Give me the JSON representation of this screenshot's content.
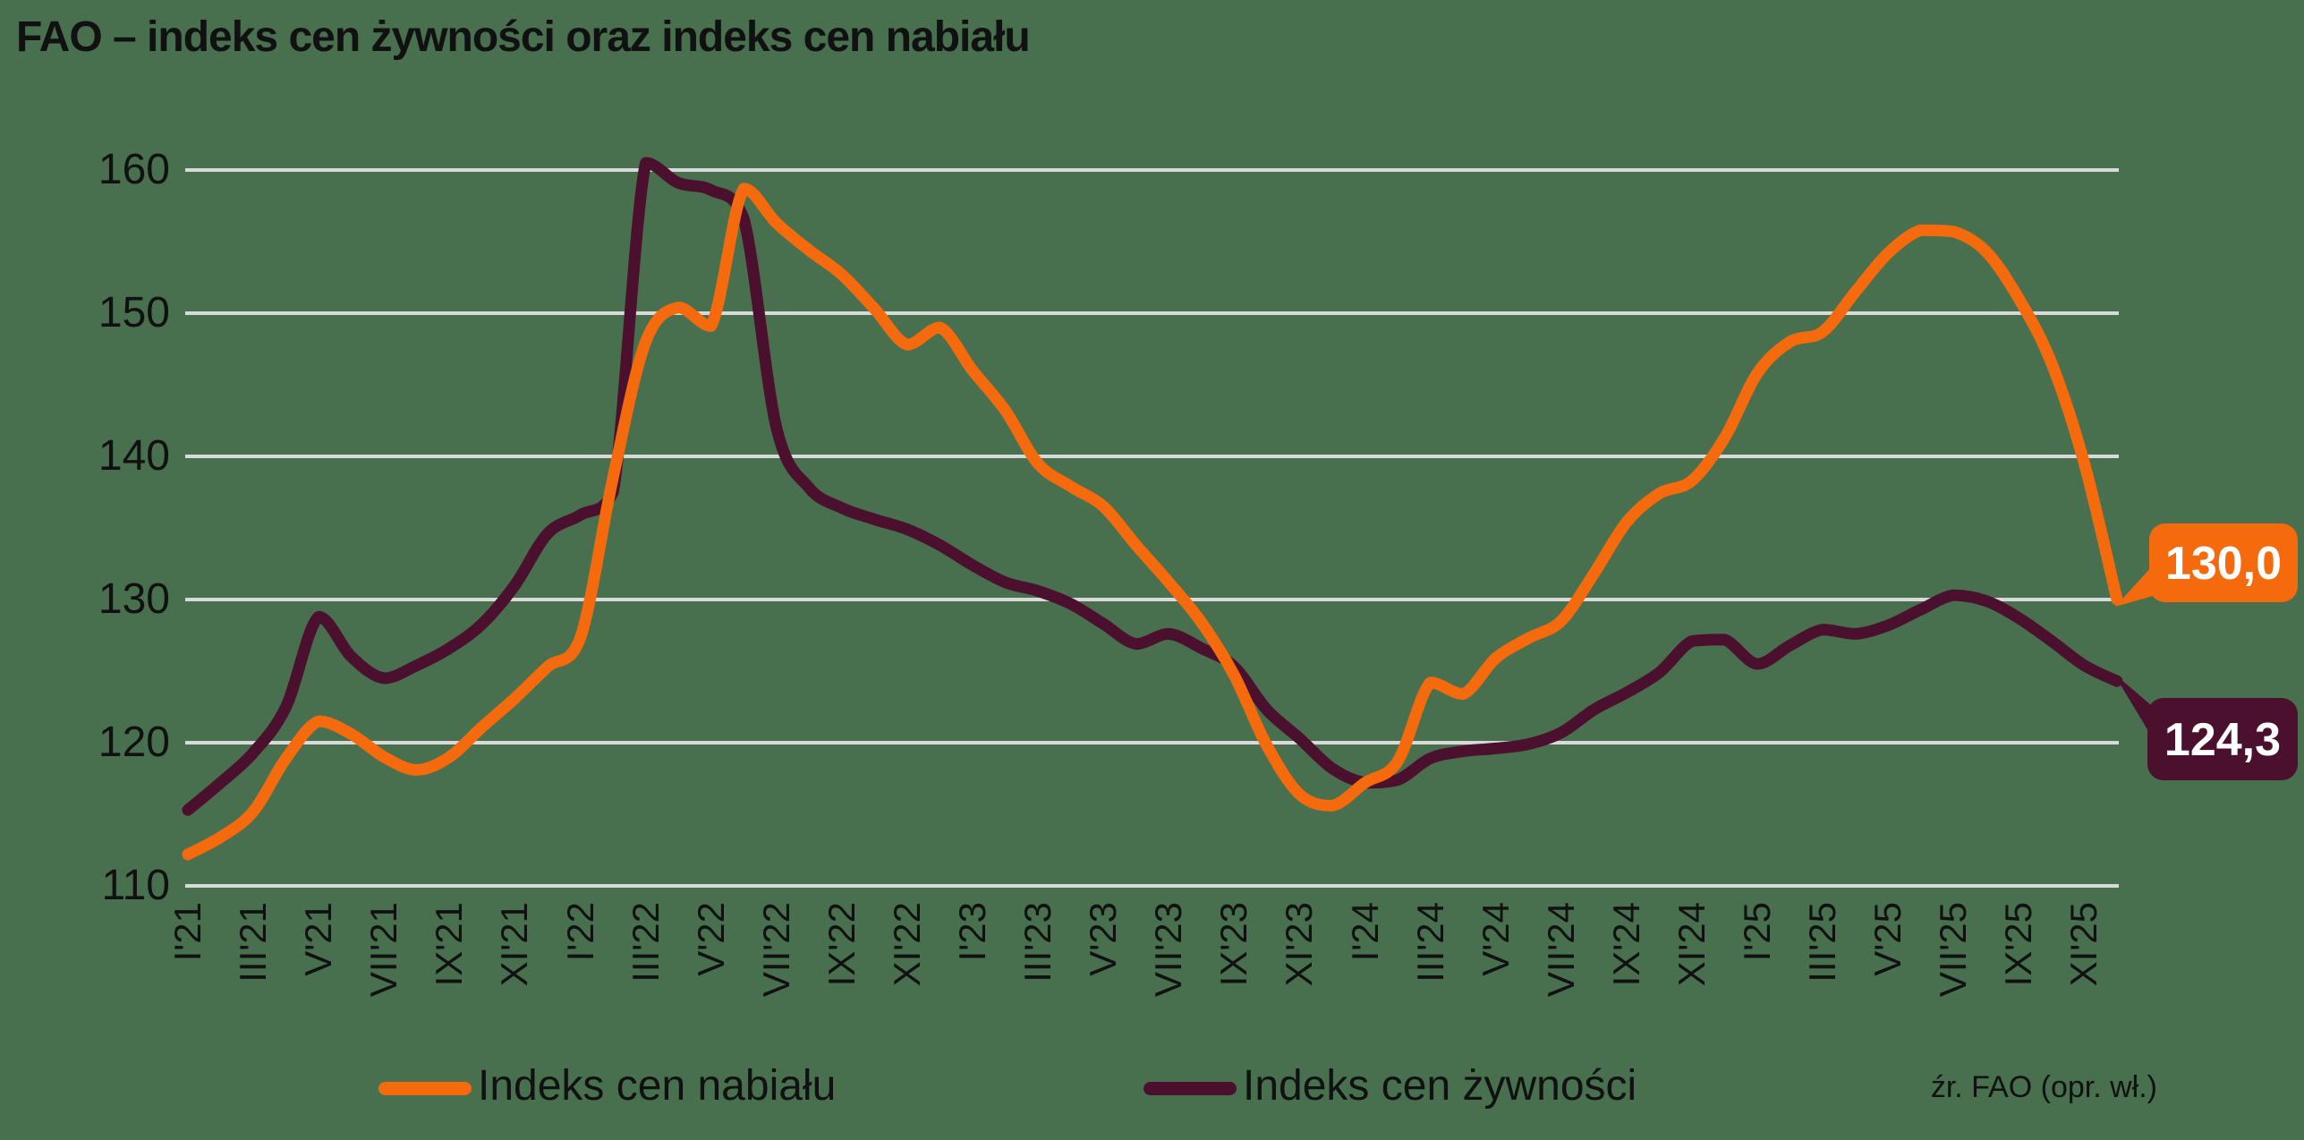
{
  "title": "FAO – indeks cen żywności oraz indeks cen nabiału",
  "source_note": "źr. FAO (opr. wł.)",
  "colors": {
    "background": "#48704E",
    "gridline": "#D9D9D9",
    "dairy": "#F56A0D",
    "food": "#4A102E",
    "text": "#111111",
    "callout_text": "#FFFFFF"
  },
  "legend": [
    {
      "label": "Indeks cen nabiału",
      "color_key": "dairy"
    },
    {
      "label": "Indeks cen żywności",
      "color_key": "food"
    }
  ],
  "end_labels": {
    "dairy": "130,0",
    "food": "124,3"
  },
  "chart_data": {
    "type": "line",
    "title": "FAO – indeks cen żywności oraz indeks cen nabiału",
    "x_start": "I'21",
    "x_end": "XII'25",
    "frequency": "monthly",
    "x_tick_labels": [
      "I'21",
      "III'21",
      "V'21",
      "VII'21",
      "IX'21",
      "XI'21",
      "I'22",
      "III'22",
      "V'22",
      "VII'22",
      "IX'22",
      "XI'22",
      "I'23",
      "III'23",
      "V'23",
      "VII'23",
      "IX'23",
      "XI'23",
      "I'24",
      "III'24",
      "V'24",
      "VII'24",
      "IX'24",
      "XI'24",
      "I'25",
      "III'25",
      "V'25",
      "VII'25",
      "IX'25",
      "XI'25"
    ],
    "y_ticks": [
      110,
      120,
      130,
      140,
      150,
      160
    ],
    "ylim": [
      110,
      160
    ],
    "grid": "horizontal",
    "legend_position": "bottom",
    "series": [
      {
        "name": "Indeks cen nabiału",
        "color_key": "dairy",
        "end_value_label": "130,0",
        "values": [
          112.2,
          113.4,
          115.2,
          118.9,
          121.5,
          120.6,
          119.0,
          118.1,
          119.0,
          121.1,
          123.1,
          125.3,
          127.3,
          138.5,
          148.0,
          150.4,
          149.1,
          158.7,
          156.3,
          154.4,
          152.7,
          150.3,
          147.8,
          149.0,
          146.0,
          143.2,
          139.5,
          137.9,
          136.5,
          133.8,
          131.2,
          128.4,
          124.7,
          119.8,
          116.4,
          115.6,
          117.2,
          118.7,
          124.2,
          123.4,
          125.9,
          127.3,
          128.5,
          131.8,
          135.4,
          137.4,
          138.3,
          141.3,
          145.8,
          148.0,
          148.7,
          151.5,
          154.2,
          155.8,
          155.7,
          154.3,
          151.0,
          146.5,
          139.5,
          130.0
        ]
      },
      {
        "name": "Indeks cen żywności",
        "color_key": "food",
        "end_value_label": "124,3",
        "values": [
          115.3,
          117.2,
          119.3,
          122.5,
          128.8,
          126.0,
          124.5,
          125.4,
          126.6,
          128.3,
          131.0,
          134.6,
          135.9,
          137.5,
          160.5,
          159.1,
          158.6,
          156.6,
          142.0,
          137.8,
          136.4,
          135.6,
          134.9,
          133.8,
          132.4,
          131.2,
          130.6,
          129.7,
          128.3,
          126.9,
          127.6,
          126.6,
          125.3,
          122.3,
          120.3,
          118.2,
          117.2,
          117.4,
          118.9,
          119.4,
          119.6,
          119.9,
          120.7,
          122.3,
          123.5,
          124.9,
          127.1,
          127.2,
          125.5,
          126.8,
          127.9,
          127.6,
          128.2,
          129.3,
          130.3,
          129.9,
          128.7,
          127.1,
          125.4,
          124.3
        ]
      }
    ]
  }
}
